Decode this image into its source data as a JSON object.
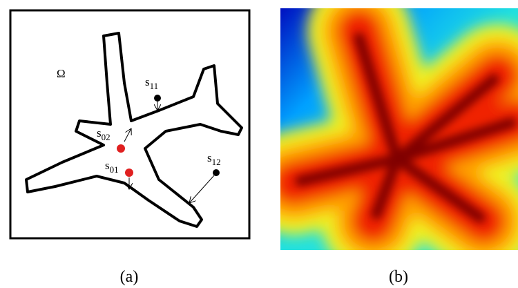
{
  "panel_a": {
    "omega": "Ω",
    "points": [
      {
        "base": "s",
        "sub": "11"
      },
      {
        "base": "s",
        "sub": "02"
      },
      {
        "base": "s",
        "sub": "01"
      },
      {
        "base": "s",
        "sub": "12"
      }
    ],
    "caption": "(a)"
  },
  "panel_b": {
    "caption": "(b)"
  }
}
